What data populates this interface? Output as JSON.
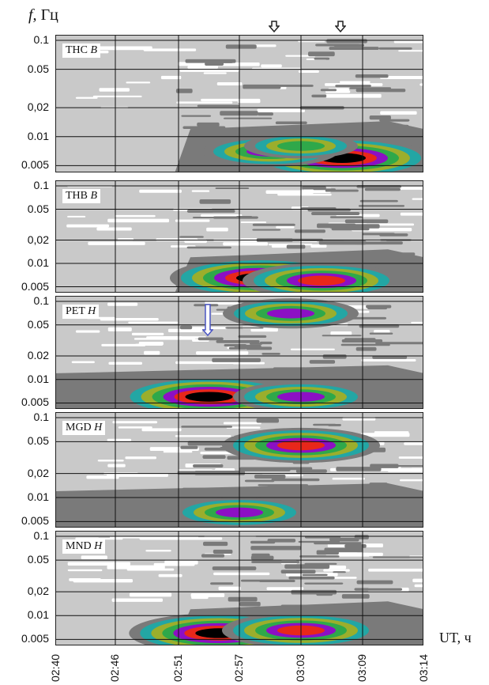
{
  "ylabel_var": "f,",
  "ylabel_unit": "Гц",
  "xlabel": "UT, ч",
  "chart_data": {
    "type": "heatmap",
    "xlim": [
      "02:40",
      "03:14"
    ],
    "x_ticks": [
      "02:40",
      "02:46",
      "02:51",
      "02:57",
      "03:03",
      "03:09",
      "03:14"
    ],
    "y_scale": "log",
    "y_ticks": [
      "0.1",
      "0.05",
      "0,02",
      "0.01",
      "0.005"
    ],
    "panels": [
      {
        "label": "THC",
        "label_italic": "B",
        "tick_variant": "0,02",
        "blobs": [
          {
            "t": "03:07",
            "f": 0.006,
            "level": 6
          },
          {
            "t": "03:00",
            "f": 0.007,
            "level": 4
          },
          {
            "t": "03:03",
            "f": 0.008,
            "level": 3
          }
        ]
      },
      {
        "label": "THB",
        "label_italic": "B",
        "tick_variant": "0,02",
        "blobs": [
          {
            "t": "02:59",
            "f": 0.0065,
            "level": 6
          },
          {
            "t": "03:05",
            "f": 0.006,
            "level": 5
          }
        ]
      },
      {
        "label": "PET",
        "label_italic": "H",
        "tick_variant": "0.02",
        "blobs": [
          {
            "t": "02:54",
            "f": 0.006,
            "level": 6
          },
          {
            "t": "03:02",
            "f": 0.07,
            "level": 4
          },
          {
            "t": "03:03",
            "f": 0.006,
            "level": 4
          }
        ]
      },
      {
        "label": "MGD",
        "label_italic": "H",
        "tick_variant": "0,02",
        "blobs": [
          {
            "t": "03:03",
            "f": 0.045,
            "level": 5
          },
          {
            "t": "02:57",
            "f": 0.0065,
            "level": 4
          }
        ]
      },
      {
        "label": "MND",
        "label_italic": "H",
        "tick_variant": "0,02",
        "blobs": [
          {
            "t": "02:55",
            "f": 0.006,
            "level": 6
          },
          {
            "t": "03:03",
            "f": 0.0065,
            "level": 5
          }
        ]
      }
    ],
    "colors": {
      "bg": "#c9c9c9",
      "gap": "#ffffff",
      "l1": "#7a7a7a",
      "l2": "#23a6a4",
      "l3": "#9bae2c",
      "l4": "#2fa84a",
      "l5": "#8c0fc4",
      "l6": "#e8271a",
      "l7": "#000000"
    }
  }
}
